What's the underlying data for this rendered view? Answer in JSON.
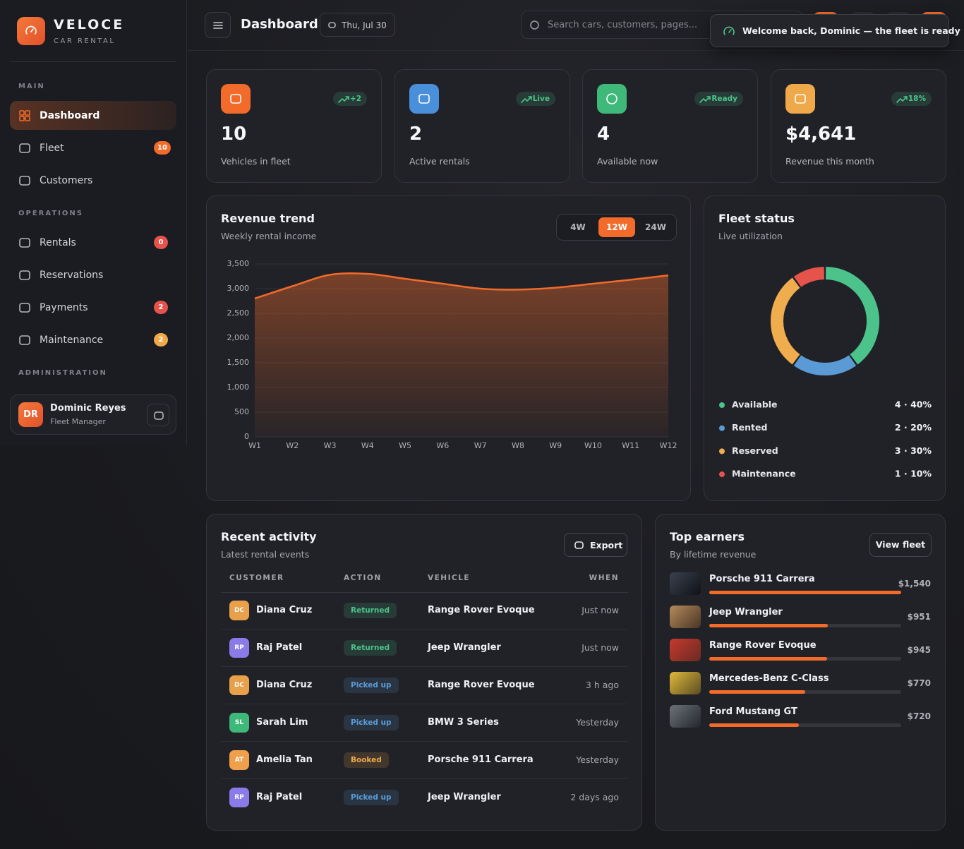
{
  "sidebar": {
    "brand": "VELOCE",
    "tagline": "CAR RENTAL",
    "sections": [
      {
        "title": "MAIN",
        "items": [
          {
            "label": "Dashboard"
          },
          {
            "label": "Fleet",
            "badge": "10",
            "badge_color": "#f26b2a"
          },
          {
            "label": "Customers"
          }
        ]
      },
      {
        "title": "OPERATIONS",
        "items": [
          {
            "label": "Rentals",
            "badge": "0",
            "badge_color": "#e5534b"
          },
          {
            "label": "Reservations"
          },
          {
            "label": "Payments",
            "badge": "2",
            "badge_color": "#e5534b"
          },
          {
            "label": "Maintenance",
            "badge": "2",
            "badge_color": "#f0a94a"
          }
        ]
      },
      {
        "title": "ADMINISTRATION"
      }
    ],
    "user": {
      "initials": "DR",
      "name": "Dominic Reyes",
      "role": "Fleet Manager"
    }
  },
  "header": {
    "title": "Dashboard",
    "date": "Thu, Jul 30",
    "search_placeholder": "Search cars, customers, pages...",
    "toast": "Welcome back, Dominic — the fleet is ready"
  },
  "stats": [
    {
      "value": "10",
      "label": "Vehicles in fleet",
      "badge": "+2",
      "color": "#f26b2a"
    },
    {
      "value": "2",
      "label": "Active rentals",
      "badge": "Live",
      "color": "#4a8fd9"
    },
    {
      "value": "4",
      "label": "Available now",
      "badge": "Ready",
      "color": "#3fb97a"
    },
    {
      "value": "$4,641",
      "label": "Revenue this month",
      "badge": "18%",
      "color": "#f0a94a"
    }
  ],
  "revenue_chart": {
    "type": "area",
    "title": "Revenue trend",
    "subtitle": "Weekly rental income",
    "ranges": [
      "4W",
      "12W",
      "24W"
    ],
    "active_range": 1,
    "categories": [
      "W1",
      "W2",
      "W3",
      "W4",
      "W5",
      "W6",
      "W7",
      "W8",
      "W9",
      "W10",
      "W11",
      "W12"
    ],
    "values": [
      2800,
      3050,
      3280,
      3300,
      3200,
      3100,
      3000,
      2980,
      3020,
      3100,
      3180,
      3270
    ],
    "color": "#f26b2a",
    "ylim": [
      0,
      3500
    ],
    "yticks": [
      0,
      500,
      {
        "value": 1000,
        "label": "1,000"
      },
      {
        "value": 1500,
        "label": "1,500"
      },
      {
        "value": 2000,
        "label": "2,000"
      },
      {
        "value": 2500,
        "label": "2,500"
      },
      {
        "value": 3000,
        "label": "3,000"
      },
      {
        "value": 3500,
        "label": "3,500"
      }
    ],
    "grid": true
  },
  "fleet_chart": {
    "type": "donut",
    "title": "Fleet status",
    "subtitle": "Live utilization",
    "categories": [
      "Available",
      "Rented",
      "Reserved",
      "Maintenance"
    ],
    "values": [
      4,
      2,
      3,
      1
    ],
    "value_labels": [
      "4 · 40%",
      "2 · 20%",
      "3 · 30%",
      "1 · 10%"
    ],
    "colors": [
      "#4cc38a",
      "#5b9bd5",
      "#f0ad4e",
      "#e5534b"
    ]
  },
  "activity": {
    "title": "Recent activity",
    "subtitle": "Latest rental events",
    "export": "Export",
    "columns": [
      "CUSTOMER",
      "ACTION",
      "VEHICLE",
      "WHEN"
    ],
    "rows": [
      {
        "initials": "DC",
        "customer": "Diana Cruz",
        "avatar_color": "#e8a04a",
        "action": "Returned",
        "action_color": "#4cc38a",
        "vehicle": "Range Rover Evoque",
        "when": "Just now"
      },
      {
        "initials": "RP",
        "customer": "Raj Patel",
        "avatar_color": "#8b7be8",
        "action": "Returned",
        "action_color": "#4cc38a",
        "vehicle": "Jeep Wrangler",
        "when": "Just now"
      },
      {
        "initials": "DC",
        "customer": "Diana Cruz",
        "avatar_color": "#e8a04a",
        "action": "Picked up",
        "action_color": "#5b9bd5",
        "vehicle": "Range Rover Evoque",
        "when": "3 h ago"
      },
      {
        "initials": "SL",
        "customer": "Sarah Lim",
        "avatar_color": "#3fb97a",
        "action": "Picked up",
        "action_color": "#5b9bd5",
        "vehicle": "BMW 3 Series",
        "when": "Yesterday"
      },
      {
        "initials": "AT",
        "customer": "Amelia Tan",
        "avatar_color": "#f0a04a",
        "action": "Booked",
        "action_color": "#f0a94a",
        "vehicle": "Porsche 911 Carrera",
        "when": "Yesterday"
      },
      {
        "initials": "RP",
        "customer": "Raj Patel",
        "avatar_color": "#8b7be8",
        "action": "Picked up",
        "action_color": "#5b9bd5",
        "vehicle": "Jeep Wrangler",
        "when": "2 days ago"
      }
    ]
  },
  "earners_chart": {
    "type": "bar",
    "title": "Top earners",
    "subtitle": "By lifetime revenue",
    "button": "View fleet",
    "categories": [
      "Porsche 911 Carrera",
      "Jeep Wrangler",
      "Range Rover Evoque",
      "Mercedes-Benz C-Class",
      "Ford Mustang GT"
    ],
    "values": [
      1540,
      951,
      945,
      770,
      720
    ],
    "value_labels": [
      "$1,540",
      "$951",
      "$945",
      "$770",
      "$720"
    ],
    "color": "#f26b2a"
  }
}
